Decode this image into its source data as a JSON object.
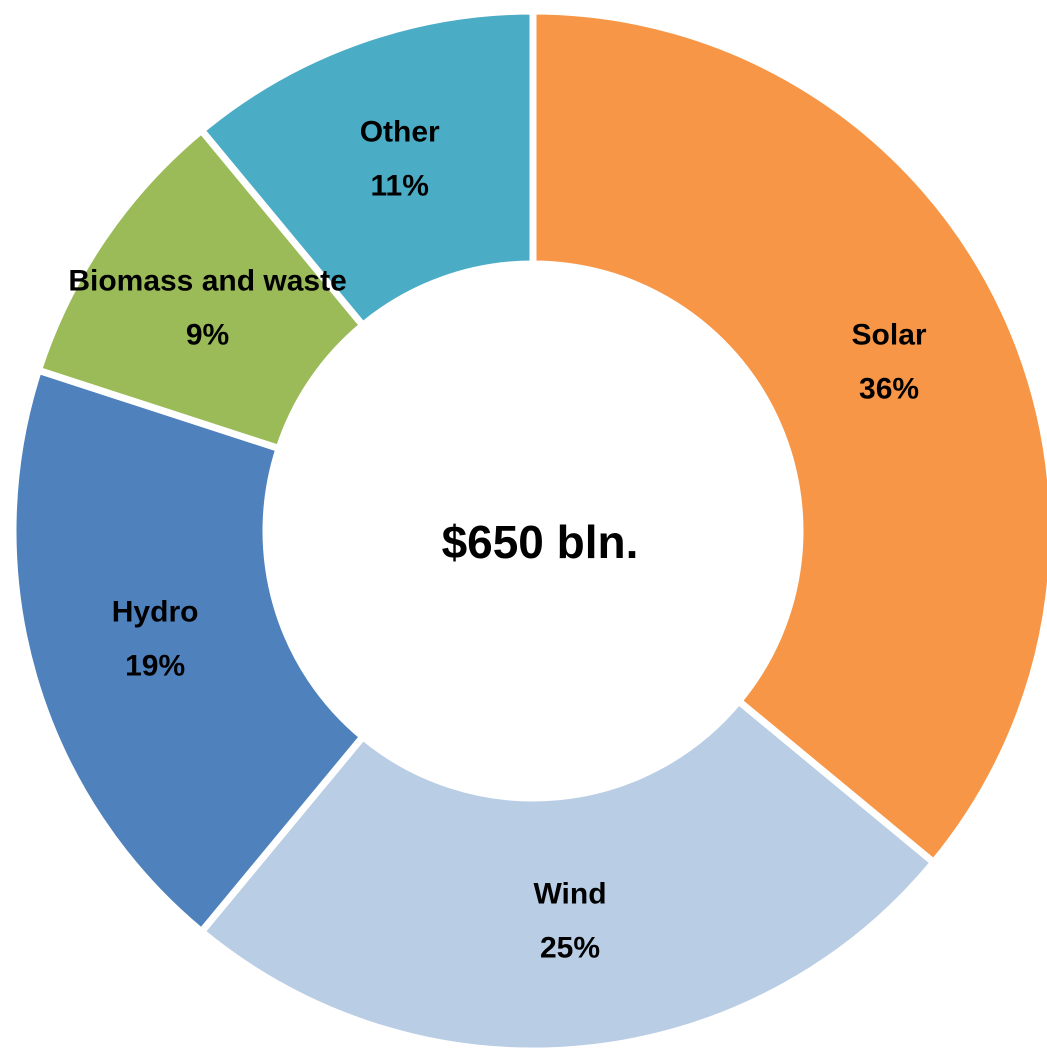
{
  "chart_data": {
    "type": "donut",
    "categories": [
      "Solar",
      "Wind",
      "Hydro",
      "Biomass and waste",
      "Other"
    ],
    "values": [
      36,
      25,
      19,
      9,
      11
    ],
    "value_labels": [
      "36%",
      "25%",
      "19%",
      "9%",
      "11%"
    ],
    "colors": [
      "#f79646",
      "#b9cde5",
      "#4f81bd",
      "#9bbb59",
      "#4bacc6"
    ],
    "center_label": "$650 bln."
  }
}
